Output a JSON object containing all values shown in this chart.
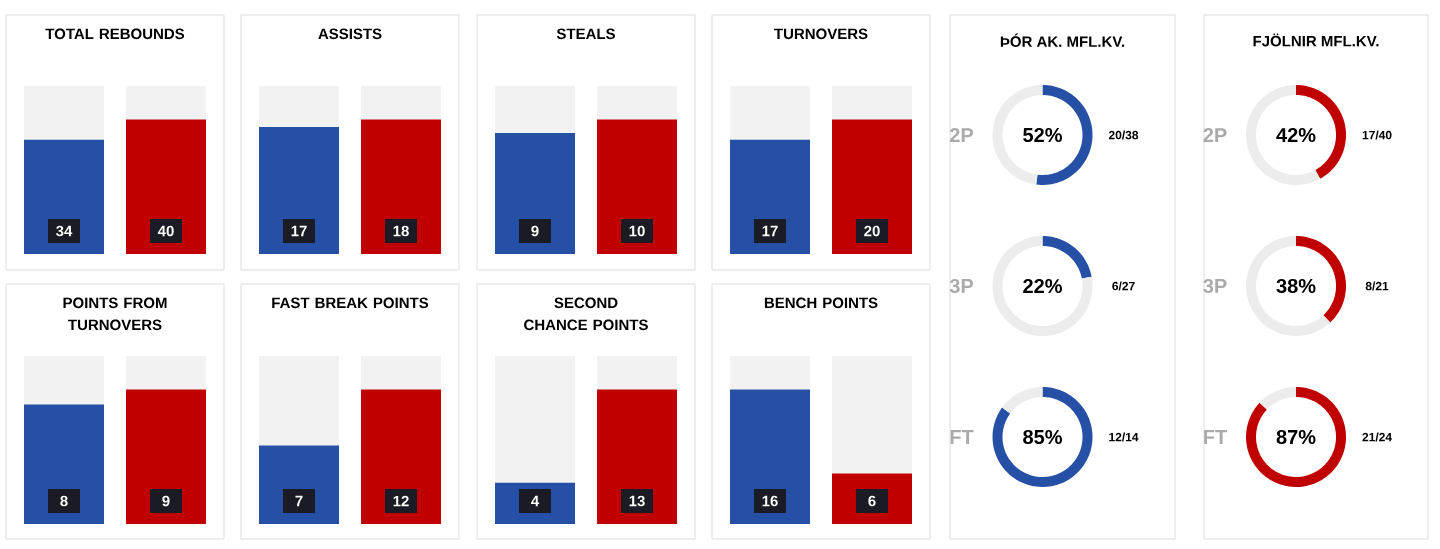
{
  "chart_data": [
    {
      "type": "bar",
      "title": "TOTAL REBOUNDS",
      "categories": [
        null,
        null
      ],
      "values": [
        34,
        40
      ],
      "colors": [
        "#2650a6",
        "#c00000"
      ],
      "ylim": [
        0,
        50
      ],
      "tick_labels": false,
      "data_labels": true
    },
    {
      "type": "bar",
      "title": "ASSISTS",
      "categories": [
        null,
        null
      ],
      "values": [
        17,
        18
      ],
      "colors": [
        "#2650a6",
        "#c00000"
      ],
      "ylim": [
        0,
        22.5
      ],
      "tick_labels": false,
      "data_labels": true
    },
    {
      "type": "bar",
      "title": "STEALS",
      "categories": [
        null,
        null
      ],
      "values": [
        9,
        10
      ],
      "colors": [
        "#2650a6",
        "#c00000"
      ],
      "ylim": [
        0,
        12.5
      ],
      "tick_labels": false,
      "data_labels": true
    },
    {
      "type": "bar",
      "title": "TURNOVERS",
      "categories": [
        null,
        null
      ],
      "values": [
        17,
        20
      ],
      "colors": [
        "#2650a6",
        "#c00000"
      ],
      "ylim": [
        0,
        25
      ],
      "tick_labels": false,
      "data_labels": true
    },
    {
      "type": "bar",
      "title": "POINTS FROM TURNOVERS",
      "categories": [
        null,
        null
      ],
      "values": [
        8,
        9
      ],
      "colors": [
        "#2650a6",
        "#c00000"
      ],
      "ylim": [
        0,
        11.25
      ],
      "tick_labels": false,
      "data_labels": true
    },
    {
      "type": "bar",
      "title": "FAST BREAK POINTS",
      "categories": [
        null,
        null
      ],
      "values": [
        7,
        12
      ],
      "colors": [
        "#2650a6",
        "#c00000"
      ],
      "ylim": [
        0,
        15
      ],
      "tick_labels": false,
      "data_labels": true
    },
    {
      "type": "bar",
      "title": "SECOND CHANCE POINTS",
      "categories": [
        null,
        null
      ],
      "values": [
        4,
        13
      ],
      "colors": [
        "#2650a6",
        "#c00000"
      ],
      "ylim": [
        0,
        16.25
      ],
      "tick_labels": false,
      "data_labels": true
    },
    {
      "type": "bar",
      "title": "BENCH POINTS",
      "categories": [
        null,
        null
      ],
      "values": [
        16,
        6
      ],
      "colors": [
        "#2650a6",
        "#c00000"
      ],
      "ylim": [
        0,
        20
      ],
      "tick_labels": false,
      "data_labels": true
    },
    {
      "type": "other",
      "title": "ÞÓR AK. MFL.KV."
    },
    {
      "type": "donut",
      "ylabel": "2P",
      "categories": [
        null,
        null
      ],
      "values": [
        52,
        48
      ],
      "colors": [
        "#2650a6",
        "#ececec"
      ],
      "annotations": [
        "52%",
        "20/38"
      ]
    },
    {
      "type": "donut",
      "ylabel": "3P",
      "categories": [
        null,
        null
      ],
      "values": [
        22,
        78
      ],
      "colors": [
        "#2650a6",
        "#ececec"
      ],
      "annotations": [
        "22%",
        "6/27"
      ]
    },
    {
      "type": "donut",
      "ylabel": "FT",
      "categories": [
        null,
        null
      ],
      "values": [
        85,
        15
      ],
      "colors": [
        "#2650a6",
        "#ececec"
      ],
      "annotations": [
        "85%",
        "12/14"
      ]
    },
    {
      "type": "other",
      "title": "FJÖLNIR MFL.KV."
    },
    {
      "type": "donut",
      "ylabel": "2P",
      "categories": [
        null,
        null
      ],
      "values": [
        42,
        58
      ],
      "colors": [
        "#c00000",
        "#ececec"
      ],
      "annotations": [
        "42%",
        "17/40"
      ]
    },
    {
      "type": "donut",
      "ylabel": "3P",
      "categories": [
        null,
        null
      ],
      "values": [
        38,
        62
      ],
      "colors": [
        "#c00000",
        "#ececec"
      ],
      "annotations": [
        "38%",
        "8/21"
      ]
    },
    {
      "type": "donut",
      "ylabel": "FT",
      "categories": [
        null,
        null
      ],
      "values": [
        87,
        13
      ],
      "colors": [
        "#c00000",
        "#ececec"
      ],
      "annotations": [
        "87%",
        "21/24"
      ]
    }
  ]
}
